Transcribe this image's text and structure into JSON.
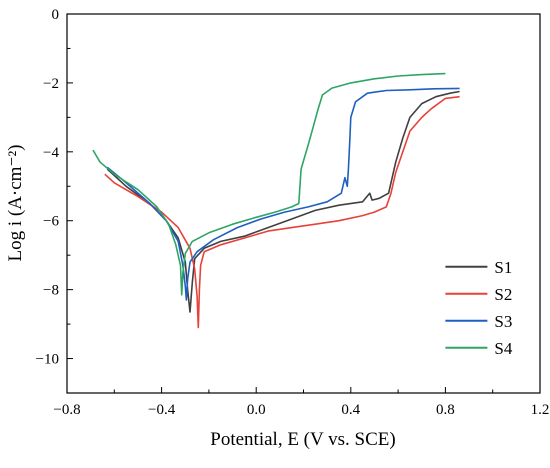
{
  "chart_data": {
    "type": "line",
    "title": "",
    "xlabel": "Potential, E (V vs. SCE)",
    "ylabel": "Log i (A·cm⁻²)",
    "xlim": [
      -0.8,
      1.2
    ],
    "ylim": [
      -11,
      0
    ],
    "xticks": [
      -0.8,
      -0.4,
      0.0,
      0.4,
      0.8,
      1.2
    ],
    "xtick_labels": [
      "−0.8",
      "−0.4",
      "0.0",
      "0.4",
      "0.8",
      "1.2"
    ],
    "yticks": [
      0,
      -2,
      -4,
      -6,
      -8,
      -10
    ],
    "ytick_labels": [
      "0",
      "−2",
      "−4",
      "−6",
      "−8",
      "−10"
    ],
    "grid": false,
    "legend_position": "bottom-right",
    "series": [
      {
        "name": "S1",
        "color": "#404040",
        "points": [
          [
            -0.63,
            -4.5
          ],
          [
            -0.55,
            -5.0
          ],
          [
            -0.45,
            -5.5
          ],
          [
            -0.38,
            -6.0
          ],
          [
            -0.33,
            -6.5
          ],
          [
            -0.3,
            -7.2
          ],
          [
            -0.29,
            -8.0
          ],
          [
            -0.28,
            -8.65
          ],
          [
            -0.27,
            -7.8
          ],
          [
            -0.26,
            -7.1
          ],
          [
            -0.22,
            -6.8
          ],
          [
            -0.15,
            -6.6
          ],
          [
            -0.05,
            -6.45
          ],
          [
            0.05,
            -6.2
          ],
          [
            0.15,
            -5.95
          ],
          [
            0.25,
            -5.7
          ],
          [
            0.35,
            -5.55
          ],
          [
            0.45,
            -5.45
          ],
          [
            0.48,
            -5.2
          ],
          [
            0.49,
            -5.4
          ],
          [
            0.52,
            -5.35
          ],
          [
            0.56,
            -5.2
          ],
          [
            0.57,
            -4.9
          ],
          [
            0.59,
            -4.3
          ],
          [
            0.62,
            -3.6
          ],
          [
            0.65,
            -3.0
          ],
          [
            0.7,
            -2.6
          ],
          [
            0.76,
            -2.4
          ],
          [
            0.82,
            -2.3
          ],
          [
            0.86,
            -2.25
          ]
        ]
      },
      {
        "name": "S2",
        "color": "#e8413a",
        "points": [
          [
            -0.64,
            -4.65
          ],
          [
            -0.6,
            -4.9
          ],
          [
            -0.5,
            -5.3
          ],
          [
            -0.4,
            -5.75
          ],
          [
            -0.33,
            -6.2
          ],
          [
            -0.28,
            -6.8
          ],
          [
            -0.26,
            -7.4
          ],
          [
            -0.25,
            -8.2
          ],
          [
            -0.245,
            -9.1
          ],
          [
            -0.24,
            -8.0
          ],
          [
            -0.235,
            -7.3
          ],
          [
            -0.22,
            -6.9
          ],
          [
            -0.15,
            -6.7
          ],
          [
            -0.05,
            -6.5
          ],
          [
            0.05,
            -6.3
          ],
          [
            0.15,
            -6.2
          ],
          [
            0.25,
            -6.1
          ],
          [
            0.35,
            -6.0
          ],
          [
            0.45,
            -5.85
          ],
          [
            0.5,
            -5.75
          ],
          [
            0.55,
            -5.6
          ],
          [
            0.57,
            -5.2
          ],
          [
            0.59,
            -4.6
          ],
          [
            0.62,
            -4.0
          ],
          [
            0.65,
            -3.4
          ],
          [
            0.7,
            -3.0
          ],
          [
            0.74,
            -2.75
          ],
          [
            0.8,
            -2.45
          ],
          [
            0.86,
            -2.4
          ]
        ]
      },
      {
        "name": "S3",
        "color": "#1f5fc2",
        "points": [
          [
            -0.63,
            -4.45
          ],
          [
            -0.55,
            -4.9
          ],
          [
            -0.45,
            -5.5
          ],
          [
            -0.38,
            -6.0
          ],
          [
            -0.33,
            -6.6
          ],
          [
            -0.31,
            -7.3
          ],
          [
            -0.3,
            -7.9
          ],
          [
            -0.295,
            -8.3
          ],
          [
            -0.29,
            -7.7
          ],
          [
            -0.28,
            -7.2
          ],
          [
            -0.25,
            -6.9
          ],
          [
            -0.18,
            -6.55
          ],
          [
            -0.08,
            -6.2
          ],
          [
            0.02,
            -5.95
          ],
          [
            0.12,
            -5.75
          ],
          [
            0.22,
            -5.6
          ],
          [
            0.3,
            -5.45
          ],
          [
            0.36,
            -5.2
          ],
          [
            0.375,
            -4.75
          ],
          [
            0.385,
            -5.0
          ],
          [
            0.39,
            -4.5
          ],
          [
            0.395,
            -3.8
          ],
          [
            0.4,
            -3.0
          ],
          [
            0.42,
            -2.55
          ],
          [
            0.47,
            -2.3
          ],
          [
            0.55,
            -2.22
          ],
          [
            0.65,
            -2.2
          ],
          [
            0.75,
            -2.17
          ],
          [
            0.86,
            -2.16
          ]
        ]
      },
      {
        "name": "S4",
        "color": "#2ea565",
        "points": [
          [
            -0.69,
            -3.95
          ],
          [
            -0.66,
            -4.3
          ],
          [
            -0.6,
            -4.65
          ],
          [
            -0.5,
            -5.1
          ],
          [
            -0.42,
            -5.6
          ],
          [
            -0.37,
            -6.1
          ],
          [
            -0.34,
            -6.7
          ],
          [
            -0.32,
            -7.3
          ],
          [
            -0.315,
            -8.15
          ],
          [
            -0.31,
            -7.5
          ],
          [
            -0.3,
            -6.95
          ],
          [
            -0.27,
            -6.6
          ],
          [
            -0.2,
            -6.35
          ],
          [
            -0.1,
            -6.1
          ],
          [
            0.0,
            -5.9
          ],
          [
            0.08,
            -5.75
          ],
          [
            0.15,
            -5.6
          ],
          [
            0.18,
            -5.5
          ],
          [
            0.19,
            -4.5
          ],
          [
            0.22,
            -3.8
          ],
          [
            0.24,
            -3.3
          ],
          [
            0.26,
            -2.8
          ],
          [
            0.28,
            -2.35
          ],
          [
            0.32,
            -2.15
          ],
          [
            0.4,
            -2.0
          ],
          [
            0.5,
            -1.88
          ],
          [
            0.6,
            -1.8
          ],
          [
            0.7,
            -1.76
          ],
          [
            0.8,
            -1.73
          ]
        ]
      }
    ]
  }
}
